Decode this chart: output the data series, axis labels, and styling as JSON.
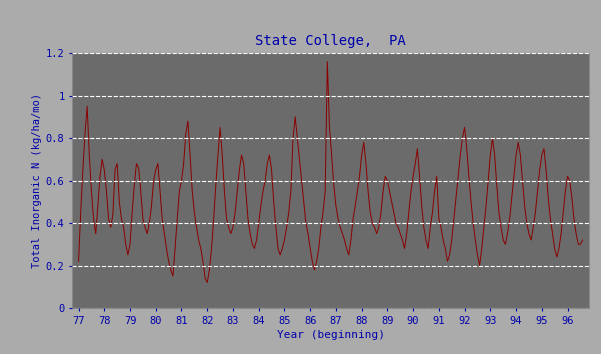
{
  "title": "State College,  PA",
  "xlabel": "Year (beginning)",
  "ylabel": "Total Inorganic N (kg/ha/mo)",
  "line_color": "#8B0000",
  "bg_color": "#6B6B6B",
  "outer_bg": "#ABABAB",
  "title_color": "#0000AA",
  "axis_label_color": "#0000AA",
  "tick_label_color": "#0000AA",
  "ylim": [
    0,
    1.2
  ],
  "grid_color": "#FFFFFF",
  "year_start": 77,
  "n_years": 20,
  "values": [
    0.22,
    0.45,
    0.65,
    0.82,
    0.95,
    0.72,
    0.55,
    0.42,
    0.35,
    0.48,
    0.62,
    0.7,
    0.65,
    0.55,
    0.42,
    0.38,
    0.44,
    0.65,
    0.68,
    0.5,
    0.42,
    0.38,
    0.3,
    0.25,
    0.3,
    0.45,
    0.58,
    0.68,
    0.66,
    0.55,
    0.42,
    0.38,
    0.35,
    0.4,
    0.48,
    0.6,
    0.65,
    0.68,
    0.55,
    0.42,
    0.35,
    0.28,
    0.22,
    0.18,
    0.15,
    0.28,
    0.42,
    0.55,
    0.6,
    0.68,
    0.82,
    0.88,
    0.72,
    0.55,
    0.45,
    0.38,
    0.32,
    0.28,
    0.22,
    0.14,
    0.12,
    0.18,
    0.28,
    0.42,
    0.58,
    0.72,
    0.85,
    0.72,
    0.55,
    0.42,
    0.38,
    0.35,
    0.38,
    0.45,
    0.55,
    0.65,
    0.72,
    0.68,
    0.55,
    0.42,
    0.35,
    0.3,
    0.28,
    0.32,
    0.4,
    0.48,
    0.55,
    0.6,
    0.68,
    0.72,
    0.65,
    0.5,
    0.38,
    0.28,
    0.25,
    0.28,
    0.32,
    0.38,
    0.45,
    0.55,
    0.8,
    0.9,
    0.8,
    0.7,
    0.6,
    0.5,
    0.4,
    0.35,
    0.28,
    0.22,
    0.18,
    0.22,
    0.28,
    0.38,
    0.45,
    0.55,
    1.16,
    0.85,
    0.72,
    0.58,
    0.48,
    0.42,
    0.38,
    0.35,
    0.32,
    0.28,
    0.25,
    0.32,
    0.42,
    0.48,
    0.55,
    0.62,
    0.72,
    0.78,
    0.68,
    0.55,
    0.45,
    0.4,
    0.38,
    0.35,
    0.38,
    0.45,
    0.55,
    0.62,
    0.6,
    0.55,
    0.5,
    0.45,
    0.4,
    0.38,
    0.35,
    0.32,
    0.28,
    0.35,
    0.45,
    0.55,
    0.62,
    0.68,
    0.75,
    0.62,
    0.48,
    0.38,
    0.32,
    0.28,
    0.38,
    0.45,
    0.55,
    0.62,
    0.42,
    0.38,
    0.32,
    0.28,
    0.22,
    0.25,
    0.32,
    0.42,
    0.52,
    0.62,
    0.72,
    0.8,
    0.85,
    0.75,
    0.62,
    0.5,
    0.4,
    0.32,
    0.25,
    0.2,
    0.28,
    0.38,
    0.48,
    0.6,
    0.72,
    0.8,
    0.72,
    0.58,
    0.45,
    0.38,
    0.32,
    0.3,
    0.35,
    0.42,
    0.52,
    0.62,
    0.72,
    0.78,
    0.72,
    0.6,
    0.48,
    0.4,
    0.35,
    0.32,
    0.38,
    0.45,
    0.55,
    0.65,
    0.72,
    0.75,
    0.65,
    0.52,
    0.42,
    0.35,
    0.28,
    0.24,
    0.28,
    0.35,
    0.45,
    0.55,
    0.62,
    0.6,
    0.52,
    0.42,
    0.35,
    0.3,
    0.3,
    0.32
  ]
}
